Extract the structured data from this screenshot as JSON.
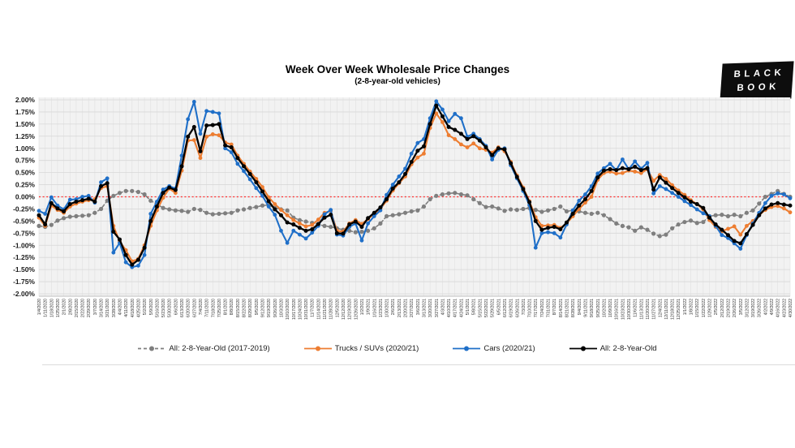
{
  "header": {
    "title": "Week Over Week Wholesale Price Changes",
    "subtitle": "(2-8-year-old vehicles)"
  },
  "logo": {
    "line1": "BLACK",
    "line2": "BOOK"
  },
  "legend": {
    "items": [
      {
        "label": "All: 2-8-Year-Old (2017-2019)",
        "color": "#7f7f7f",
        "dashed": true
      },
      {
        "label": "Trucks / SUVs (2020/21)",
        "color": "#ed7d31",
        "dashed": false
      },
      {
        "label": "Cars (2020/21)",
        "color": "#1f6fc8",
        "dashed": false
      },
      {
        "label": "All: 2-8-Year-Old",
        "color": "#000000",
        "dashed": false
      }
    ]
  },
  "chart_data": {
    "type": "line",
    "title": "Week Over Week Wholesale Price Changes",
    "subtitle": "(2-8-year-old vehicles)",
    "xlabel": "",
    "ylabel": "",
    "ylim": [
      -2.0,
      2.0
    ],
    "y_step": 0.25,
    "grid": true,
    "legend_position": "bottom",
    "zero_line": {
      "color": "#ff2f2f",
      "style": "dotted",
      "value": 0.0
    },
    "colors": {
      "plot_bg": "#f2f2f2",
      "h_grid": "#d8d8d8",
      "v_grid": "#e0e0e0",
      "axis": "#bfbfbf",
      "tick_text": "#1a1a1a",
      "x_label_text": "#333333"
    },
    "y_tick_labels": [
      "2.00%",
      "1.75%",
      "1.50%",
      "1.25%",
      "1.00%",
      "0.75%",
      "0.50%",
      "0.25%",
      "0.00%",
      "-0.25%",
      "-0.50%",
      "-0.75%",
      "-1.00%",
      "-1.25%",
      "-1.50%",
      "-1.75%",
      "-2.00%"
    ],
    "x": [
      "1/4/2020",
      "1/11/2020",
      "1/18/2020",
      "1/25/2020",
      "2/1/2020",
      "2/8/2020",
      "2/15/2020",
      "2/22/2020",
      "2/29/2020",
      "3/7/2020",
      "3/14/2020",
      "3/21/2020",
      "3/28/2020",
      "4/4/2020",
      "4/11/2020",
      "4/18/2020",
      "4/25/2020",
      "5/2/2020",
      "5/9/2020",
      "5/16/2020",
      "5/23/2020",
      "5/30/2020",
      "6/6/2020",
      "6/13/2020",
      "6/20/2020",
      "6/27/2020",
      "7/4/2020",
      "7/11/2020",
      "7/18/2020",
      "7/25/2020",
      "8/1/2020",
      "8/8/2020",
      "8/15/2020",
      "8/22/2020",
      "8/29/2020",
      "9/5/2020",
      "9/12/2020",
      "9/19/2020",
      "9/26/2020",
      "10/3/2020",
      "10/10/2020",
      "10/17/2020",
      "10/24/2020",
      "10/31/2020",
      "11/7/2020",
      "11/14/2020",
      "11/21/2020",
      "11/28/2020",
      "12/5/2020",
      "12/12/2020",
      "12/19/2020",
      "12/26/2020",
      "1/2/2021",
      "1/9/2021",
      "1/16/2021",
      "1/23/2021",
      "1/30/2021",
      "2/6/2021",
      "2/13/2021",
      "2/20/2021",
      "2/27/2021",
      "3/6/2021",
      "3/13/2021",
      "3/20/2021",
      "3/27/2021",
      "4/3/2021",
      "4/10/2021",
      "4/17/2021",
      "4/24/2021",
      "5/1/2021",
      "5/8/2021",
      "5/15/2021",
      "5/22/2021",
      "5/29/2021",
      "6/5/2021",
      "6/12/2021",
      "6/19/2021",
      "6/26/2021",
      "7/3/2021",
      "7/10/2021",
      "7/17/2021",
      "7/24/2021",
      "7/31/2021",
      "8/7/2021",
      "8/14/2021",
      "8/21/2021",
      "8/28/2021",
      "9/4/2021",
      "9/11/2021",
      "9/18/2021",
      "9/25/2021",
      "10/2/2021",
      "10/9/2021",
      "10/16/2021",
      "10/23/2021",
      "10/30/2021",
      "11/6/2021",
      "11/13/2021",
      "11/20/2021",
      "11/27/2021",
      "12/4/2021",
      "12/11/2021",
      "12/18/2021",
      "12/25/2021",
      "1/1/2022",
      "1/8/2022",
      "1/15/2022",
      "1/22/2022",
      "1/29/2022",
      "2/5/2022",
      "2/12/2022",
      "2/19/2022",
      "2/26/2022",
      "3/5/2022",
      "3/12/2022",
      "3/19/2022",
      "3/26/2022",
      "4/2/2022",
      "4/9/2022",
      "4/16/2022",
      "4/23/2022",
      "4/30/2022"
    ],
    "series": [
      {
        "name": "All: 2-8-Year-Old (2017-2019)",
        "color": "#7f7f7f",
        "dashed": true,
        "marker_r": 2.6,
        "line_w": 1.6,
        "values": [
          -0.6,
          -0.62,
          -0.58,
          -0.49,
          -0.44,
          -0.41,
          -0.4,
          -0.39,
          -0.38,
          -0.33,
          -0.25,
          -0.08,
          0.02,
          0.08,
          0.12,
          0.12,
          0.1,
          0.05,
          -0.08,
          -0.15,
          -0.23,
          -0.26,
          -0.28,
          -0.29,
          -0.31,
          -0.25,
          -0.27,
          -0.33,
          -0.36,
          -0.35,
          -0.34,
          -0.33,
          -0.28,
          -0.26,
          -0.23,
          -0.21,
          -0.18,
          -0.17,
          -0.23,
          -0.26,
          -0.28,
          -0.43,
          -0.48,
          -0.51,
          -0.54,
          -0.57,
          -0.6,
          -0.62,
          -0.65,
          -0.68,
          -0.7,
          -0.73,
          -0.72,
          -0.7,
          -0.65,
          -0.55,
          -0.4,
          -0.38,
          -0.36,
          -0.33,
          -0.3,
          -0.28,
          -0.2,
          -0.05,
          0.02,
          0.05,
          0.07,
          0.08,
          0.05,
          0.03,
          -0.05,
          -0.13,
          -0.21,
          -0.2,
          -0.24,
          -0.29,
          -0.26,
          -0.27,
          -0.25,
          -0.23,
          -0.27,
          -0.31,
          -0.28,
          -0.25,
          -0.2,
          -0.3,
          -0.28,
          -0.3,
          -0.33,
          -0.35,
          -0.33,
          -0.38,
          -0.46,
          -0.55,
          -0.6,
          -0.63,
          -0.7,
          -0.63,
          -0.68,
          -0.76,
          -0.81,
          -0.78,
          -0.65,
          -0.57,
          -0.52,
          -0.49,
          -0.54,
          -0.52,
          -0.4,
          -0.38,
          -0.37,
          -0.4,
          -0.37,
          -0.4,
          -0.33,
          -0.28,
          -0.14,
          0.0,
          0.06,
          0.12,
          0.06,
          0.0
        ]
      },
      {
        "name": "Trucks / SUVs (2020/21)",
        "color": "#ed7d31",
        "dashed": false,
        "marker_r": 2.4,
        "line_w": 2.1,
        "values": [
          -0.43,
          -0.6,
          -0.18,
          -0.27,
          -0.33,
          -0.2,
          -0.14,
          -0.1,
          -0.07,
          -0.05,
          0.18,
          0.22,
          -0.6,
          -0.92,
          -1.1,
          -1.33,
          -1.28,
          -1.0,
          -0.6,
          -0.28,
          -0.02,
          0.17,
          0.08,
          0.54,
          1.16,
          1.17,
          0.8,
          1.24,
          1.29,
          1.27,
          1.12,
          1.08,
          0.85,
          0.68,
          0.52,
          0.37,
          0.2,
          -0.01,
          -0.15,
          -0.27,
          -0.38,
          -0.48,
          -0.55,
          -0.61,
          -0.58,
          -0.47,
          -0.33,
          -0.29,
          -0.7,
          -0.72,
          -0.55,
          -0.48,
          -0.56,
          -0.46,
          -0.35,
          -0.25,
          -0.08,
          0.13,
          0.28,
          0.42,
          0.67,
          0.81,
          0.89,
          1.42,
          1.72,
          1.54,
          1.27,
          1.19,
          1.08,
          1.02,
          1.1,
          1.0,
          0.97,
          0.91,
          1.02,
          0.94,
          0.72,
          0.44,
          0.19,
          -0.09,
          -0.42,
          -0.6,
          -0.59,
          -0.58,
          -0.64,
          -0.55,
          -0.4,
          -0.25,
          -0.12,
          0.0,
          0.35,
          0.49,
          0.52,
          0.48,
          0.49,
          0.54,
          0.52,
          0.49,
          0.57,
          0.33,
          0.45,
          0.37,
          0.24,
          0.13,
          0.04,
          -0.07,
          -0.15,
          -0.26,
          -0.48,
          -0.62,
          -0.71,
          -0.66,
          -0.61,
          -0.78,
          -0.6,
          -0.5,
          -0.38,
          -0.27,
          -0.21,
          -0.19,
          -0.24,
          -0.32
        ]
      },
      {
        "name": "Cars (2020/21)",
        "color": "#1f6fc8",
        "dashed": false,
        "marker_r": 2.4,
        "line_w": 2.1,
        "values": [
          -0.29,
          -0.35,
          -0.01,
          -0.18,
          -0.26,
          -0.06,
          -0.05,
          0.0,
          0.02,
          -0.12,
          0.3,
          0.38,
          -1.15,
          -0.95,
          -1.35,
          -1.45,
          -1.42,
          -1.2,
          -0.35,
          -0.1,
          0.15,
          0.22,
          0.17,
          0.85,
          1.6,
          1.96,
          1.3,
          1.77,
          1.75,
          1.72,
          1.0,
          0.92,
          0.68,
          0.53,
          0.36,
          0.18,
          0.02,
          -0.2,
          -0.37,
          -0.7,
          -0.95,
          -0.7,
          -0.78,
          -0.86,
          -0.74,
          -0.6,
          -0.36,
          -0.27,
          -0.78,
          -0.8,
          -0.62,
          -0.55,
          -0.9,
          -0.55,
          -0.4,
          -0.28,
          0.04,
          0.25,
          0.42,
          0.58,
          0.89,
          1.11,
          1.19,
          1.62,
          1.97,
          1.8,
          1.56,
          1.71,
          1.62,
          1.24,
          1.3,
          1.19,
          1.05,
          0.77,
          0.97,
          1.0,
          0.65,
          0.38,
          0.12,
          -0.17,
          -1.05,
          -0.75,
          -0.73,
          -0.75,
          -0.84,
          -0.57,
          -0.28,
          -0.08,
          0.05,
          0.22,
          0.48,
          0.59,
          0.68,
          0.55,
          0.77,
          0.57,
          0.73,
          0.58,
          0.7,
          0.07,
          0.22,
          0.16,
          0.08,
          0.0,
          -0.09,
          -0.17,
          -0.26,
          -0.34,
          -0.4,
          -0.6,
          -0.79,
          -0.85,
          -0.96,
          -1.07,
          -0.79,
          -0.55,
          -0.33,
          -0.13,
          0.02,
          0.07,
          0.05,
          -0.03
        ]
      },
      {
        "name": "All: 2-8-Year-Old",
        "color": "#000000",
        "dashed": false,
        "marker_r": 2.5,
        "line_w": 2.3,
        "values": [
          -0.38,
          -0.57,
          -0.13,
          -0.24,
          -0.3,
          -0.15,
          -0.1,
          -0.07,
          -0.04,
          -0.1,
          0.22,
          0.28,
          -0.72,
          -0.88,
          -1.2,
          -1.4,
          -1.3,
          -1.05,
          -0.5,
          -0.2,
          0.08,
          0.19,
          0.14,
          0.63,
          1.24,
          1.44,
          0.94,
          1.47,
          1.48,
          1.5,
          1.06,
          1.02,
          0.8,
          0.63,
          0.47,
          0.3,
          0.11,
          -0.09,
          -0.26,
          -0.38,
          -0.53,
          -0.57,
          -0.64,
          -0.7,
          -0.67,
          -0.56,
          -0.43,
          -0.37,
          -0.75,
          -0.76,
          -0.57,
          -0.51,
          -0.62,
          -0.44,
          -0.33,
          -0.22,
          -0.05,
          0.17,
          0.3,
          0.47,
          0.72,
          0.95,
          1.04,
          1.5,
          1.88,
          1.66,
          1.44,
          1.38,
          1.3,
          1.19,
          1.25,
          1.16,
          1.02,
          0.86,
          1.0,
          0.98,
          0.69,
          0.41,
          0.16,
          -0.11,
          -0.5,
          -0.68,
          -0.64,
          -0.62,
          -0.67,
          -0.53,
          -0.35,
          -0.18,
          -0.05,
          0.12,
          0.4,
          0.54,
          0.57,
          0.55,
          0.59,
          0.57,
          0.62,
          0.55,
          0.59,
          0.15,
          0.4,
          0.29,
          0.18,
          0.08,
          -0.01,
          -0.1,
          -0.15,
          -0.23,
          -0.43,
          -0.57,
          -0.68,
          -0.79,
          -0.91,
          -0.96,
          -0.77,
          -0.58,
          -0.38,
          -0.24,
          -0.16,
          -0.13,
          -0.16,
          -0.18
        ]
      }
    ]
  }
}
